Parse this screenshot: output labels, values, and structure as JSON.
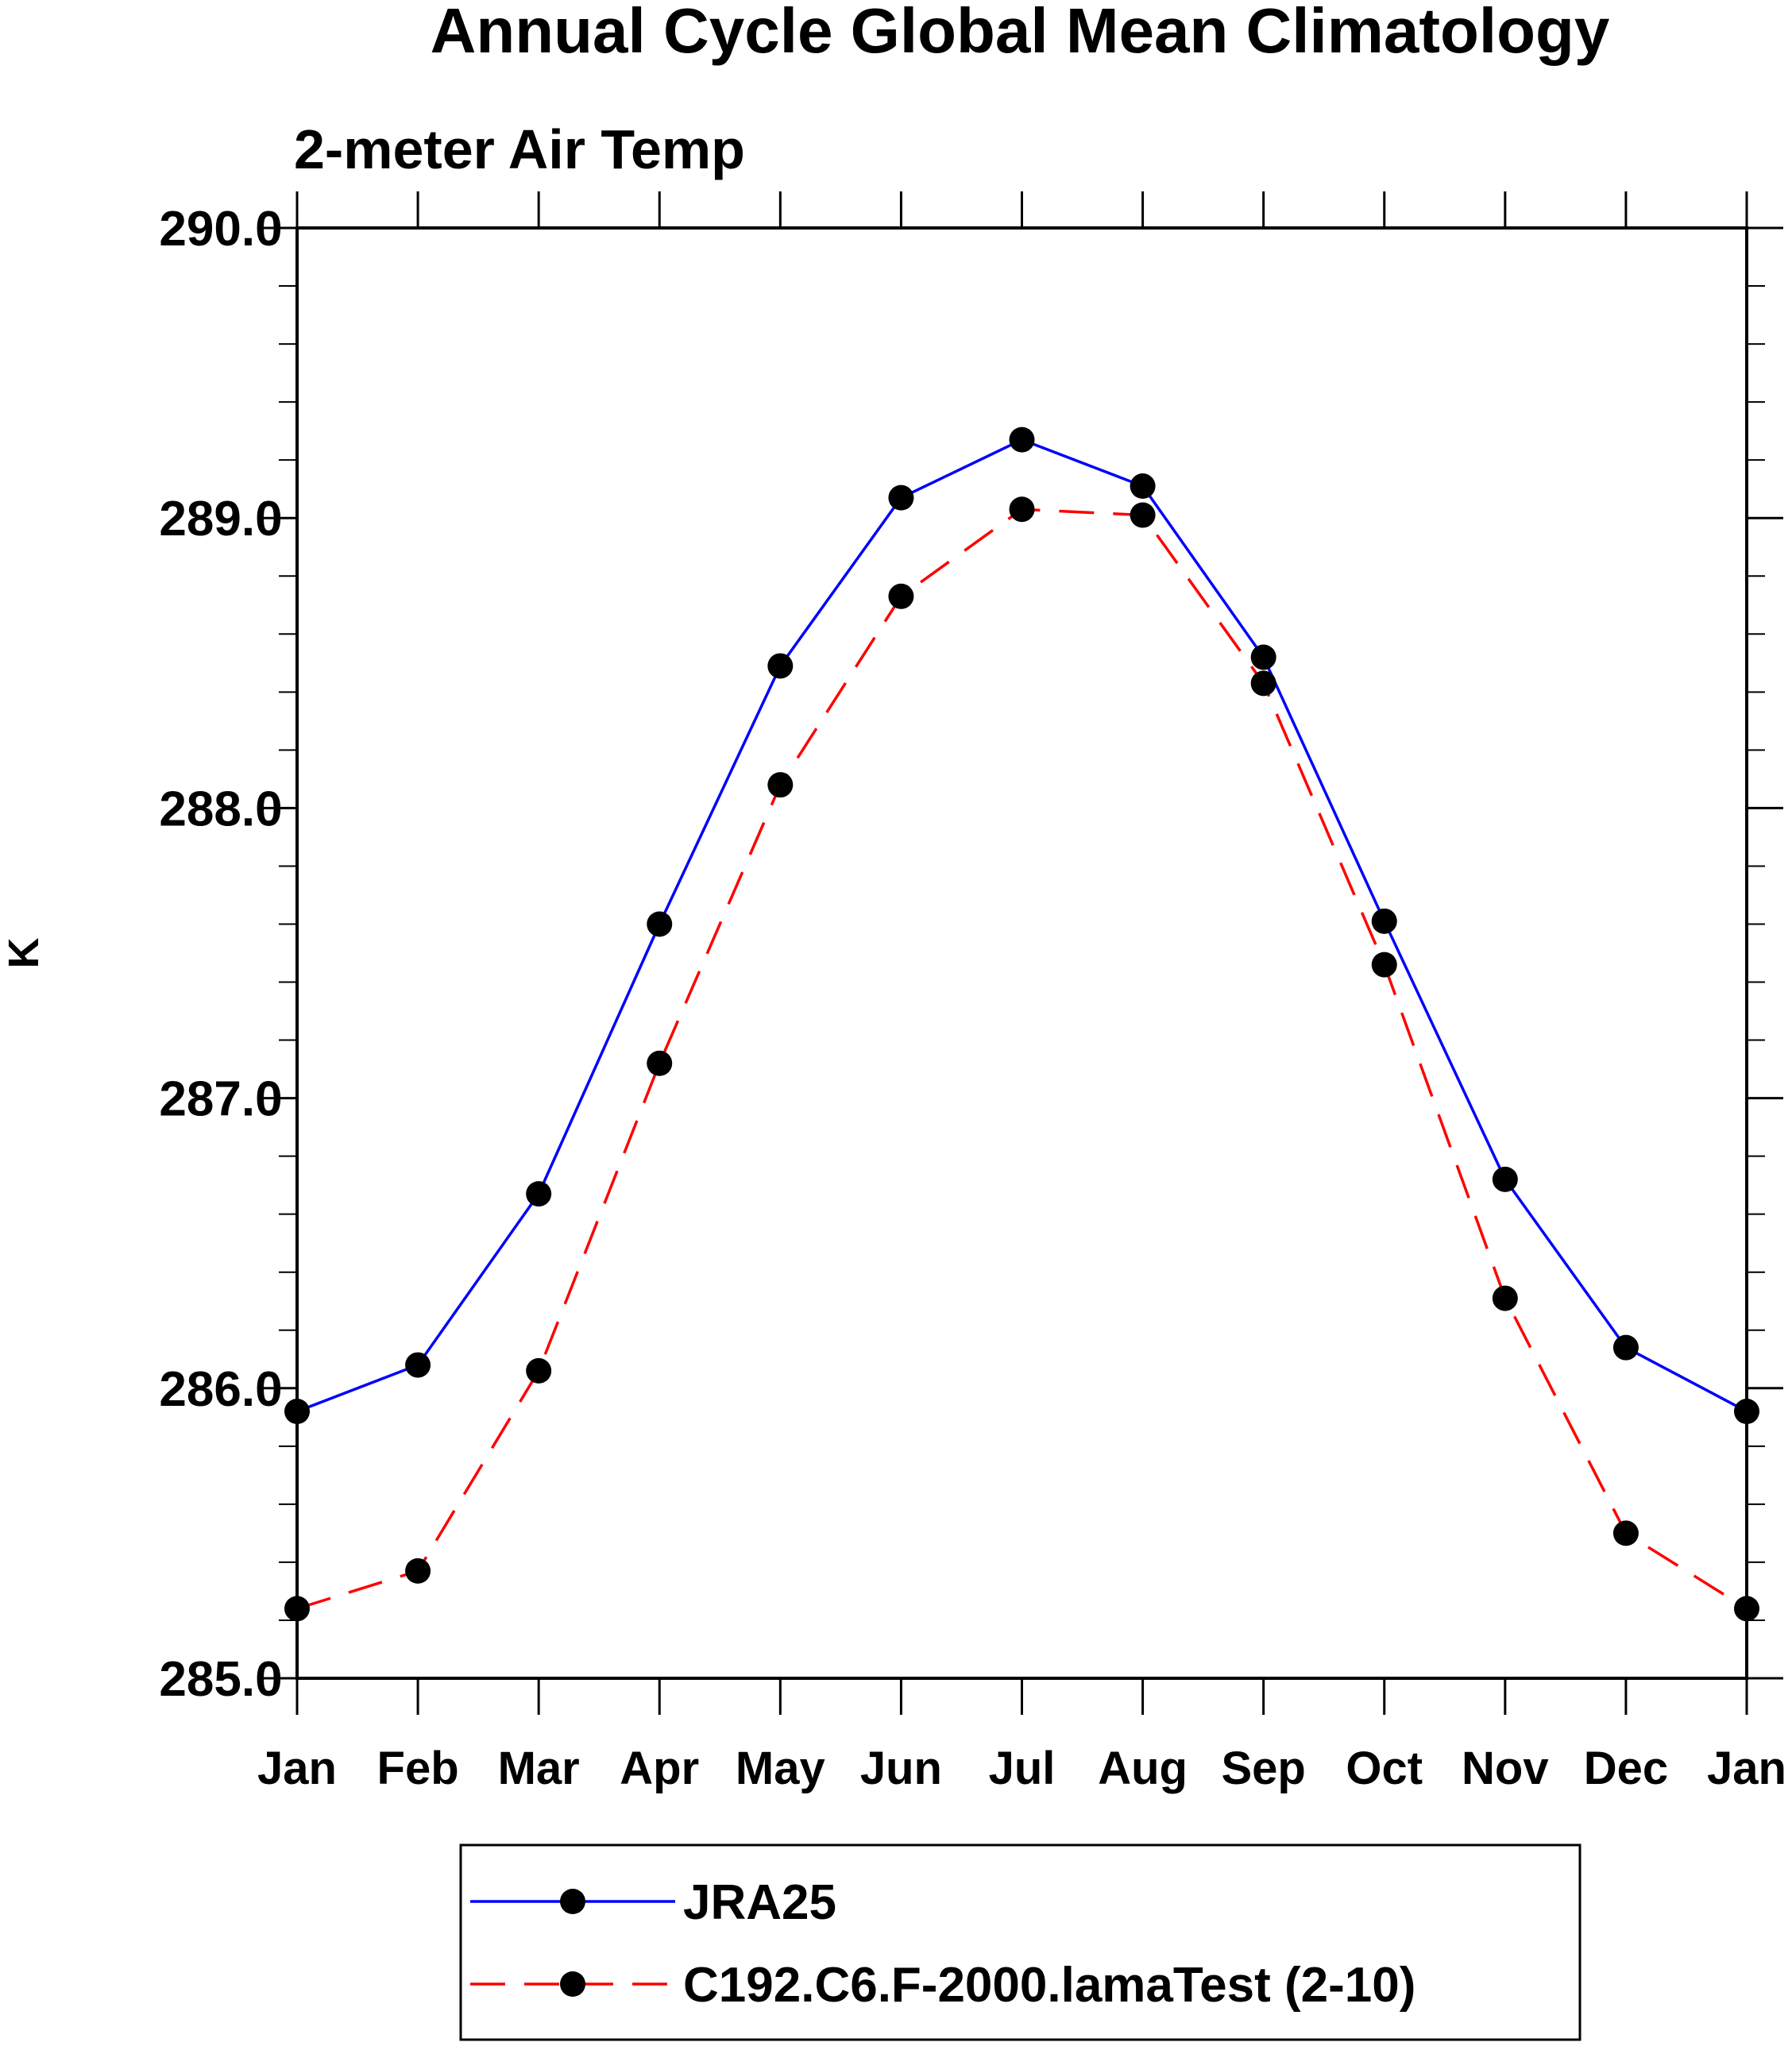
{
  "chart_data": {
    "type": "line",
    "title": "Annual Cycle Global Mean Climatology",
    "subtitle": "2-meter Air Temp",
    "xlabel": "",
    "ylabel": "K",
    "categories": [
      "Jan",
      "Feb",
      "Mar",
      "Apr",
      "May",
      "Jun",
      "Jul",
      "Aug",
      "Sep",
      "Oct",
      "Nov",
      "Dec",
      "Jan"
    ],
    "yticks": [
      "285.0",
      "286.0",
      "287.0",
      "288.0",
      "289.0",
      "290.0"
    ],
    "ylim": [
      285.0,
      290.0
    ],
    "grid": false,
    "legend_position": "bottom-center",
    "series": [
      {
        "name": "JRA25",
        "color": "#0000ff",
        "line_style": "solid",
        "marker": "filled-circle",
        "values": [
          285.92,
          286.08,
          286.67,
          287.6,
          288.49,
          289.07,
          289.27,
          289.11,
          288.52,
          287.61,
          286.72,
          286.14,
          285.92
        ]
      },
      {
        "name": "C192.C6.F-2000.lamaTest (2-10)",
        "color": "#ff0000",
        "line_style": "dashed",
        "marker": "filled-circle",
        "values": [
          285.24,
          285.37,
          286.06,
          287.12,
          288.08,
          288.73,
          289.03,
          289.01,
          288.43,
          287.46,
          286.31,
          285.5,
          285.24
        ]
      }
    ]
  }
}
